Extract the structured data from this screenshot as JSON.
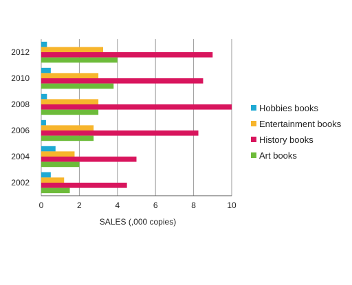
{
  "chart_data": {
    "type": "bar",
    "orientation": "horizontal",
    "categories": [
      "2002",
      "2004",
      "2006",
      "2008",
      "2010",
      "2012"
    ],
    "series": [
      {
        "name": "Hobbies books",
        "color": "#1fa9d3",
        "values": [
          0.5,
          0.75,
          0.25,
          0.3,
          0.5,
          0.3
        ]
      },
      {
        "name": "Entertainment books",
        "color": "#f7b52c",
        "values": [
          1.2,
          1.75,
          2.75,
          3.0,
          3.0,
          3.25
        ]
      },
      {
        "name": "History books",
        "color": "#d8155d",
        "values": [
          4.5,
          5.0,
          8.25,
          10.0,
          8.5,
          9.0
        ]
      },
      {
        "name": "Art books",
        "color": "#6dbb3a",
        "values": [
          1.5,
          2.0,
          2.75,
          3.0,
          3.8,
          4.0
        ]
      }
    ],
    "xlabel": "SALES (,000 copies)",
    "ylabel": "",
    "xlim": [
      0,
      10
    ],
    "xticks": [
      "0",
      "2",
      "4",
      "6",
      "8",
      "10"
    ],
    "grid": "vertical",
    "legend_position": "right"
  }
}
